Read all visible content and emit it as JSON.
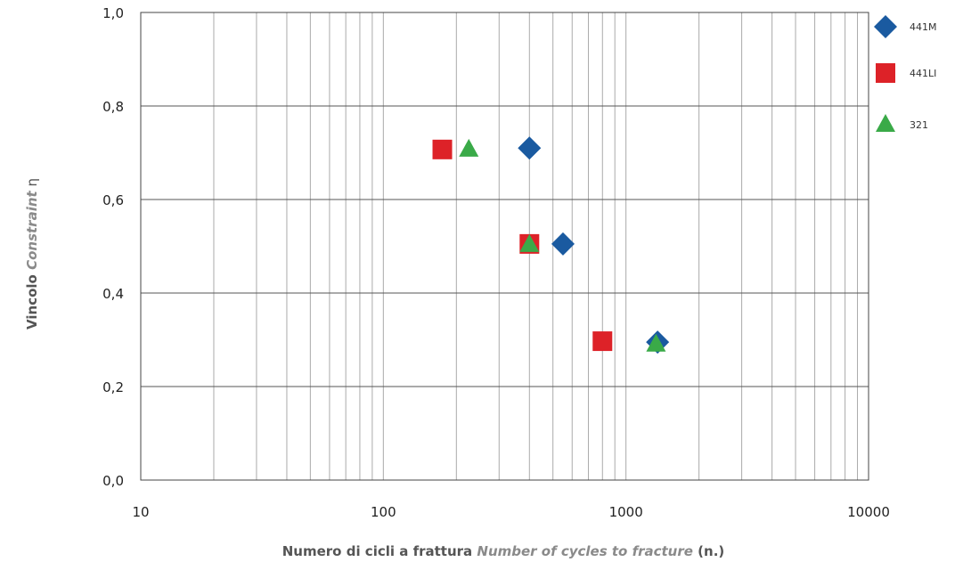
{
  "chart_data": {
    "type": "scatter",
    "x_scale": "log",
    "xlim": [
      10,
      10000
    ],
    "ylim": [
      0,
      1
    ],
    "grid": true,
    "legend_position": "right",
    "xlabel": {
      "part1": "Numero di cicli a frattura ",
      "part2": "Number of cycles to fracture",
      "part3": " (n.)"
    },
    "ylabel": {
      "part1": "Vincolo ",
      "part2": "Constraint",
      "part3": " η"
    },
    "x_ticks": [
      {
        "value": 10,
        "label": "10"
      },
      {
        "value": 100,
        "label": "100"
      },
      {
        "value": 1000,
        "label": "1000"
      },
      {
        "value": 10000,
        "label": "10000"
      }
    ],
    "y_ticks": [
      {
        "value": 0.0,
        "label": "0,0"
      },
      {
        "value": 0.2,
        "label": "0,2"
      },
      {
        "value": 0.4,
        "label": "0,4"
      },
      {
        "value": 0.6,
        "label": "0,6"
      },
      {
        "value": 0.8,
        "label": "0,8"
      },
      {
        "value": 1.0,
        "label": "1,0"
      }
    ],
    "series": [
      {
        "name": "441M",
        "marker": "diamond",
        "color": "#1a5aa0",
        "points": [
          [
            400,
            0.71
          ],
          [
            550,
            0.505
          ],
          [
            1350,
            0.295
          ]
        ]
      },
      {
        "name": "441LI",
        "marker": "square",
        "color": "#dd2228",
        "points": [
          [
            175,
            0.707
          ],
          [
            400,
            0.505
          ],
          [
            800,
            0.297
          ]
        ]
      },
      {
        "name": "321",
        "marker": "triangle",
        "color": "#3aaa48",
        "points": [
          [
            225,
            0.707
          ],
          [
            400,
            0.503
          ],
          [
            1330,
            0.29
          ]
        ]
      }
    ]
  }
}
